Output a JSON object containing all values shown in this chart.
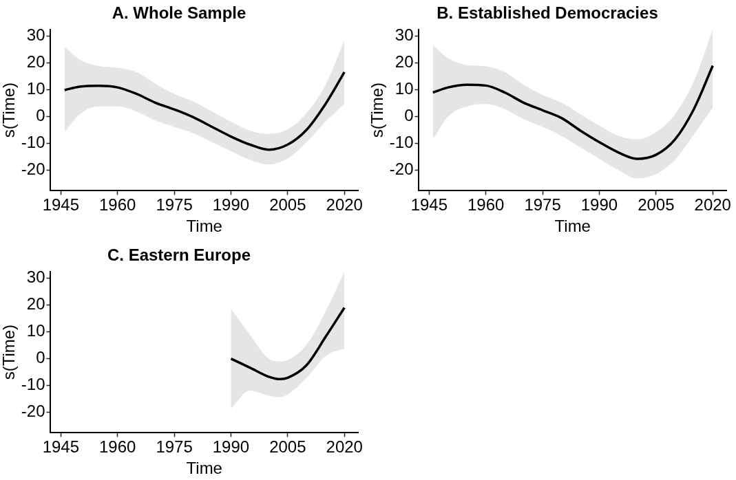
{
  "chart_data": [
    {
      "type": "line",
      "title": "A. Whole Sample",
      "xlabel": "Time",
      "ylabel": "s(Time)",
      "xlim": [
        1942.3,
        2023.6
      ],
      "ylim": [
        -27.6,
        32.5
      ],
      "xticks": [
        1945,
        1960,
        1975,
        1990,
        2005,
        2020
      ],
      "yticks": [
        -20,
        -10,
        0,
        10,
        20,
        30
      ],
      "grid": false,
      "legend": false,
      "series": [
        {
          "color": "#000000",
          "x": [
            1946,
            1950,
            1955,
            1960,
            1965,
            1970,
            1975,
            1980,
            1985,
            1990,
            1995,
            2000,
            2005,
            2010,
            2015,
            2020
          ],
          "values": [
            9.9,
            11.2,
            11.5,
            10.9,
            8.5,
            5.2,
            2.7,
            -0.2,
            -3.8,
            -7.4,
            -10.4,
            -12.3,
            -10.4,
            -4.9,
            4.7,
            16.6
          ],
          "upper": [
            26,
            21.3,
            18.9,
            18.2,
            16.6,
            12.3,
            8.5,
            5.7,
            1.9,
            -1.9,
            -5.2,
            -6.4,
            -4.7,
            1.4,
            11.8,
            28.4
          ],
          "lower": [
            -5.7,
            0.9,
            3.8,
            3.8,
            1.9,
            -1.4,
            -3.8,
            -6.2,
            -9.5,
            -12.8,
            -16.1,
            -17.8,
            -15.6,
            -9.5,
            -1.9,
            4.7
          ]
        }
      ]
    },
    {
      "type": "line",
      "title": "B. Established Democracies",
      "xlabel": "Time",
      "ylabel": "s(Time)",
      "xlim": [
        1942.3,
        2023.6
      ],
      "ylim": [
        -27.6,
        32.5
      ],
      "xticks": [
        1945,
        1960,
        1975,
        1990,
        2005,
        2020
      ],
      "yticks": [
        -20,
        -10,
        0,
        10,
        20,
        30
      ],
      "grid": false,
      "legend": false,
      "series": [
        {
          "color": "#000000",
          "x": [
            1946,
            1950,
            1955,
            1960,
            1965,
            1970,
            1975,
            1980,
            1985,
            1990,
            1995,
            2000,
            2005,
            2010,
            2015,
            2020
          ],
          "values": [
            9,
            10.9,
            11.9,
            11.6,
            9,
            5.2,
            2.4,
            -0.5,
            -5.2,
            -9.5,
            -13.3,
            -15.7,
            -14.2,
            -8.5,
            2.8,
            19
          ],
          "upper": [
            26.6,
            21.8,
            19.2,
            18.8,
            16.6,
            11.9,
            8.1,
            5.2,
            0.9,
            -3.3,
            -7.1,
            -8.4,
            -5.7,
            0.9,
            13.3,
            32.4
          ],
          "lower": [
            -8.4,
            0,
            3.8,
            4.7,
            2.8,
            -0.9,
            -3.8,
            -7.1,
            -11.4,
            -15.7,
            -19.9,
            -23,
            -21.4,
            -16.1,
            -6.6,
            3.3
          ]
        }
      ]
    },
    {
      "type": "line",
      "title": "C. Eastern Europe",
      "xlabel": "Time",
      "ylabel": "s(Time)",
      "xlim": [
        1942.3,
        2023.6
      ],
      "ylim": [
        -27.6,
        32.5
      ],
      "xticks": [
        1945,
        1960,
        1975,
        1990,
        2005,
        2020
      ],
      "yticks": [
        -20,
        -10,
        0,
        10,
        20,
        30
      ],
      "grid": false,
      "legend": false,
      "series": [
        {
          "color": "#000000",
          "x": [
            1990,
            1995,
            2000,
            2003,
            2005,
            2010,
            2015,
            2020
          ],
          "values": [
            0,
            -3.3,
            -6.7,
            -7.6,
            -7.1,
            -2.4,
            8.1,
            19
          ],
          "upper": [
            18.6,
            9,
            0,
            -1,
            -0.5,
            5.2,
            17.6,
            32.4
          ],
          "lower": [
            -18.6,
            -11.9,
            -13.8,
            -14.3,
            -13.3,
            -7.1,
            1,
            3.8
          ]
        }
      ]
    }
  ]
}
